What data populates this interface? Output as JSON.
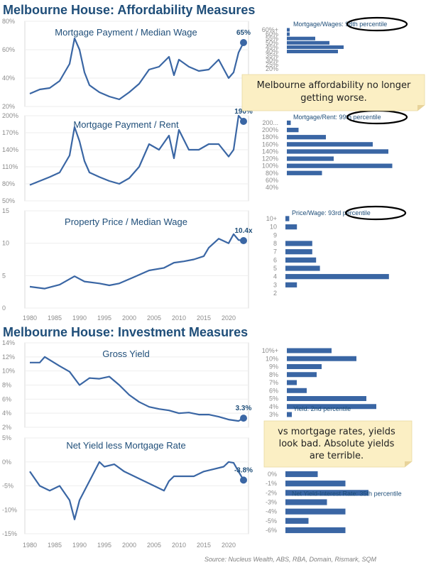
{
  "sections": {
    "affordability_title": "Melbourne House: Affordability Measures",
    "investment_title": "Melbourne House: Investment Measures"
  },
  "notes": {
    "affordability": "Melbourne affordability no longer getting worse.",
    "affordability_lines": [
      "Melbourne affordability no longer",
      "getting worse."
    ],
    "investment_lines": [
      "vs mortgage rates, yields",
      "look bad. Absolute yields",
      "are terrible."
    ]
  },
  "source": "Source: Nucleus Wealth, ABS, RBA, Domain, Rismark, SQM",
  "colors": {
    "series": "#3a66a4",
    "title": "#1f4e79",
    "note_bg": "#fbefc4"
  },
  "chart_data": [
    {
      "type": "line",
      "title": "Mortgage Payment / Median Wage",
      "end_label": "65%",
      "y_ticks": [
        "20%",
        "40%",
        "60%",
        "80%"
      ],
      "ylim": [
        20,
        80
      ],
      "x": [
        1980,
        1982,
        1984,
        1986,
        1988,
        1989,
        1990,
        1991,
        1992,
        1994,
        1996,
        1998,
        2000,
        2002,
        2004,
        2006,
        2008,
        2009,
        2010,
        2012,
        2014,
        2016,
        2018,
        2020,
        2021,
        2022,
        2023
      ],
      "values": [
        29,
        32,
        33,
        38,
        50,
        68,
        60,
        44,
        35,
        30,
        27,
        25,
        30,
        36,
        46,
        48,
        55,
        42,
        53,
        48,
        45,
        46,
        53,
        40,
        44,
        58,
        65
      ]
    },
    {
      "type": "line",
      "title": "Mortgage Payment / Rent",
      "end_label": "190%",
      "y_ticks": [
        "50%",
        "80%",
        "110%",
        "140%",
        "170%",
        "200%"
      ],
      "ylim": [
        50,
        200
      ],
      "x": [
        1980,
        1982,
        1984,
        1986,
        1988,
        1989,
        1990,
        1991,
        1992,
        1994,
        1996,
        1998,
        2000,
        2002,
        2004,
        2006,
        2008,
        2009,
        2010,
        2012,
        2014,
        2016,
        2018,
        2020,
        2021,
        2022,
        2023
      ],
      "values": [
        78,
        85,
        92,
        100,
        130,
        180,
        155,
        120,
        100,
        92,
        85,
        80,
        90,
        110,
        150,
        140,
        165,
        125,
        175,
        140,
        140,
        150,
        150,
        128,
        140,
        200,
        190
      ]
    },
    {
      "type": "line",
      "title": "Property Price / Median Wage",
      "end_label": "10.4x",
      "y_ticks": [
        "0",
        "5",
        "10",
        "15"
      ],
      "ylim": [
        0,
        15
      ],
      "x": [
        1980,
        1983,
        1986,
        1989,
        1991,
        1994,
        1996,
        1998,
        2001,
        2004,
        2007,
        2009,
        2011,
        2013,
        2015,
        2016,
        2018,
        2020,
        2021,
        2022,
        2023
      ],
      "values": [
        3.3,
        3.0,
        3.6,
        4.9,
        4.1,
        3.8,
        3.5,
        3.8,
        4.8,
        5.8,
        6.2,
        7.0,
        7.2,
        7.5,
        8.0,
        9.3,
        10.7,
        10.0,
        11.4,
        10.5,
        10.4
      ]
    },
    {
      "type": "line",
      "title": "Gross Yield",
      "end_label": "3.3%",
      "y_ticks": [
        "2%",
        "4%",
        "6%",
        "8%",
        "10%",
        "12%",
        "14%"
      ],
      "ylim": [
        2,
        14
      ],
      "x": [
        1980,
        1982,
        1983,
        1986,
        1988,
        1990,
        1992,
        1994,
        1996,
        1998,
        2000,
        2002,
        2004,
        2006,
        2008,
        2010,
        2012,
        2014,
        2016,
        2018,
        2020,
        2022,
        2023
      ],
      "values": [
        11.2,
        11.2,
        12.0,
        10.7,
        9.9,
        8.0,
        9.0,
        8.9,
        9.2,
        8.0,
        6.6,
        5.6,
        4.9,
        4.6,
        4.4,
        4.0,
        4.1,
        3.8,
        3.8,
        3.5,
        3.1,
        2.9,
        3.3
      ]
    },
    {
      "type": "line",
      "title": "Net Yield less Mortgage Rate",
      "end_label": "-3.8%",
      "y_ticks": [
        "-15%",
        "-10%",
        "-5%",
        "0%",
        "5%"
      ],
      "ylim": [
        -15,
        5
      ],
      "x": [
        1980,
        1982,
        1984,
        1986,
        1988,
        1989,
        1990,
        1992,
        1994,
        1995,
        1997,
        1999,
        2001,
        2003,
        2005,
        2007,
        2008,
        2009,
        2011,
        2013,
        2015,
        2017,
        2019,
        2020,
        2021,
        2022,
        2023
      ],
      "values": [
        -2,
        -5,
        -6,
        -5,
        -8,
        -12,
        -8,
        -4,
        0,
        -1,
        -0.5,
        -2,
        -3,
        -4,
        -5,
        -6,
        -4,
        -3,
        -3,
        -3,
        -2,
        -1.5,
        -1,
        0,
        -0.2,
        -2,
        -3.8
      ]
    },
    {
      "type": "bar",
      "orientation": "horizontal",
      "percentile_label": "Mortgage/Wages: 98th percentile",
      "categories": [
        "60%+",
        "60%",
        "55%",
        "50%",
        "45%",
        "40%",
        "35%",
        "30%",
        "25%",
        "20%"
      ],
      "values": [
        1,
        1,
        10,
        15,
        20,
        18,
        0,
        0,
        0,
        0
      ]
    },
    {
      "type": "bar",
      "orientation": "horizontal",
      "percentile_label": "Mortgage/Rent: 99th percentile",
      "categories": [
        "200...",
        "200%",
        "180%",
        "160%",
        "140%",
        "120%",
        "100%",
        "80%",
        "60%",
        "40%"
      ],
      "values": [
        1,
        3,
        10,
        22,
        26,
        12,
        27,
        9,
        0,
        0
      ]
    },
    {
      "type": "bar",
      "orientation": "horizontal",
      "percentile_label": "Price/Wage: 93rd percentile",
      "categories": [
        "10+",
        "10",
        "9",
        "8",
        "7",
        "6",
        "5",
        "4",
        "3",
        "2"
      ],
      "values": [
        1,
        3,
        0,
        7,
        7,
        8,
        9,
        27,
        3,
        0
      ]
    },
    {
      "type": "bar",
      "orientation": "horizontal",
      "percentile_label": "Yield: 2nd percentile",
      "categories": [
        "10%+",
        "10%",
        "9%",
        "8%",
        "7%",
        "6%",
        "5%",
        "4%",
        "3%"
      ],
      "values": [
        9,
        14,
        7,
        6,
        2,
        4,
        16,
        18,
        1
      ]
    },
    {
      "type": "bar",
      "orientation": "horizontal",
      "percentile_label": "Net Yield-Interest Rate: 35th percentile",
      "categories": [
        "0%",
        "-1%",
        "-2%",
        "-3%",
        "-4%",
        "-5%",
        "-6%"
      ],
      "values": [
        7,
        13,
        18,
        9,
        13,
        5,
        13
      ]
    }
  ],
  "x_axis_years": [
    "1980",
    "1985",
    "1990",
    "1995",
    "2000",
    "2005",
    "2010",
    "2015",
    "2020"
  ]
}
